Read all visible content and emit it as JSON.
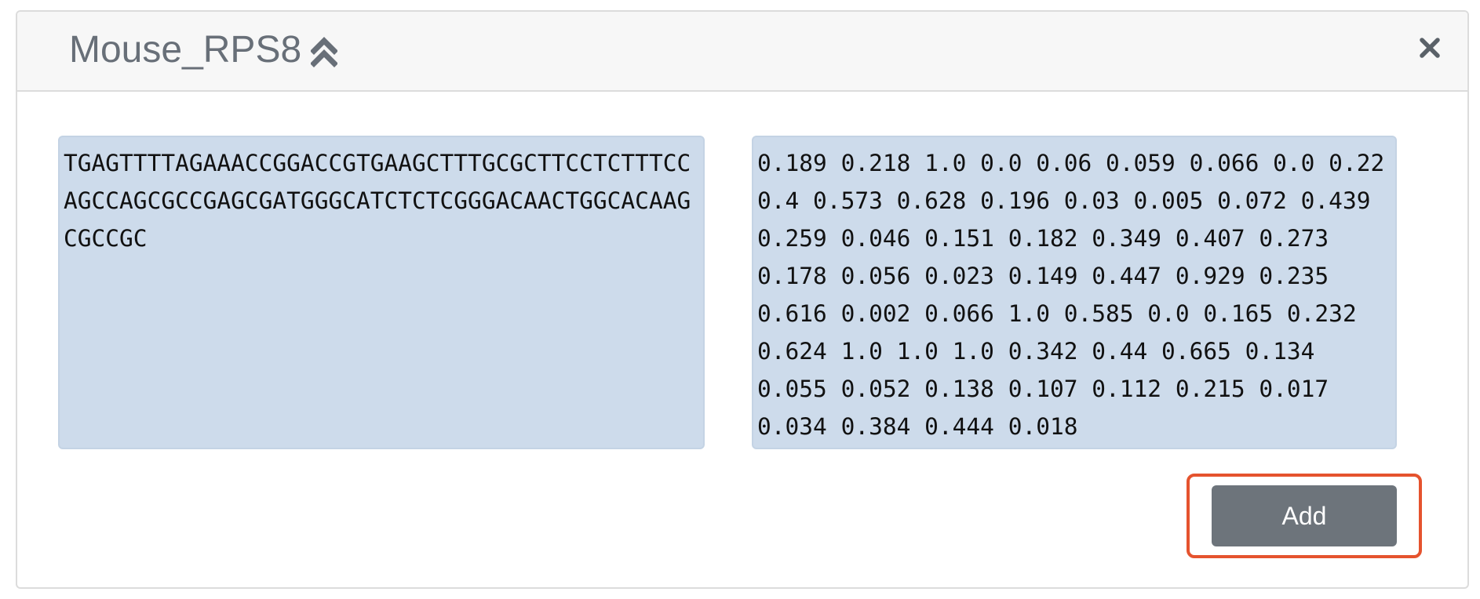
{
  "modal": {
    "title": "Mouse_RPS8",
    "collapse_icon": "double-chevron-up-icon",
    "close_icon": "close-x-icon"
  },
  "sequence": {
    "value": "TGAGTTTTAGAAACCGGACCGTGAAGCTTTGCGCTTCCTCTTTCCAGCCAGCGCCGAGCGATGGGCATCTCTCGGGACAACTGGCACAAGCGCCGC"
  },
  "scores": {
    "value": "0.189 0.218 1.0 0.0 0.06 0.059 0.066 0.0 0.22 0.4 0.573 0.628 0.196 0.03 0.005 0.072 0.439 0.259 0.046 0.151 0.182 0.349 0.407 0.273 0.178 0.056 0.023 0.149 0.447 0.929 0.235 0.616 0.002 0.066 1.0 0.585 0.0 0.165 0.232 0.624 1.0 1.0 1.0 0.342 0.44 0.665 0.134 0.055 0.052 0.138 0.107 0.112 0.215 0.017 0.034 0.384 0.444 0.018"
  },
  "actions": {
    "add_label": "Add"
  },
  "colors": {
    "header_bg": "#f7f7f7",
    "textarea_bg": "#cddbeb",
    "button_bg": "#6d747b",
    "highlight": "#e5532e",
    "title_text": "#686f78"
  }
}
